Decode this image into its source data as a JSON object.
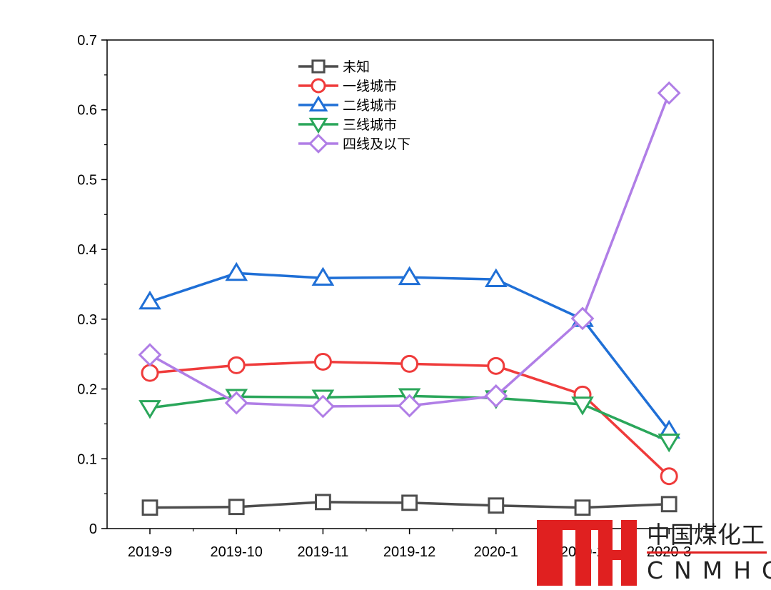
{
  "chart_data": {
    "type": "line",
    "title": "",
    "xlabel": "",
    "ylabel": "",
    "categories": [
      "2019-9",
      "2019-10",
      "2019-11",
      "2019-12",
      "2020-1",
      "2020-2",
      "2020-3"
    ],
    "ylim": [
      0,
      0.7
    ],
    "yticks": [
      "0",
      "0.1",
      "0.2",
      "0.3",
      "0.4",
      "0.5",
      "0.6",
      "0.7"
    ],
    "grid": false,
    "legend_position": "top-center",
    "series": [
      {
        "name": "未知",
        "color": "#4d4d4d",
        "marker": "square",
        "values": [
          0.03,
          0.031,
          0.038,
          0.037,
          0.033,
          0.03,
          0.035
        ]
      },
      {
        "name": "一线城市",
        "color": "#ef3b3b",
        "marker": "circle",
        "values": [
          0.223,
          0.234,
          0.239,
          0.236,
          0.233,
          0.192,
          0.075
        ]
      },
      {
        "name": "二线城市",
        "color": "#1f6fd6",
        "marker": "triangle-up",
        "values": [
          0.325,
          0.366,
          0.359,
          0.36,
          0.357,
          0.3,
          0.14
        ]
      },
      {
        "name": "三线城市",
        "color": "#2aa65a",
        "marker": "triangle-down",
        "values": [
          0.173,
          0.189,
          0.188,
          0.19,
          0.187,
          0.178,
          0.125
        ]
      },
      {
        "name": "四线及以下",
        "color": "#b07ee6",
        "marker": "diamond",
        "values": [
          0.249,
          0.18,
          0.175,
          0.176,
          0.19,
          0.301,
          0.624
        ]
      }
    ]
  },
  "watermark": {
    "name_cn": "中国煤化工",
    "name_en": "CNMHG",
    "logo_color": "#e02020"
  }
}
